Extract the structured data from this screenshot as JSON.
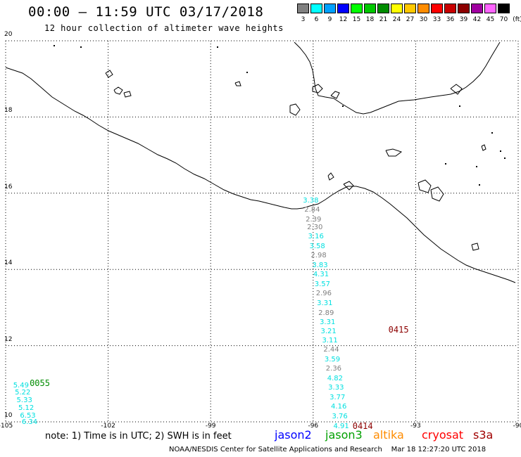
{
  "header": {
    "title": "00:00 – 11:59 UTC 03/17/2018",
    "subtitle": "12 hour collection of altimeter wave heights"
  },
  "legend": {
    "unit_label": "(ft)",
    "bins": [
      {
        "label": "3",
        "color": "#808080"
      },
      {
        "label": "6",
        "color": "#00ffff"
      },
      {
        "label": "9",
        "color": "#00a0ff"
      },
      {
        "label": "12",
        "color": "#0000ff"
      },
      {
        "label": "15",
        "color": "#00ff00"
      },
      {
        "label": "18",
        "color": "#00c800"
      },
      {
        "label": "21",
        "color": "#008c00"
      },
      {
        "label": "24",
        "color": "#ffff00"
      },
      {
        "label": "27",
        "color": "#ffc800"
      },
      {
        "label": "30",
        "color": "#ff8c00"
      },
      {
        "label": "33",
        "color": "#ff0000"
      },
      {
        "label": "36",
        "color": "#c80000"
      },
      {
        "label": "39",
        "color": "#8c0000"
      },
      {
        "label": "42",
        "color": "#a000a0"
      },
      {
        "label": "45",
        "color": "#ff64ff"
      },
      {
        "label": "70",
        "color": "#000000"
      }
    ]
  },
  "axes": {
    "lat_labels": [
      "20",
      "18",
      "16",
      "14",
      "12",
      "10"
    ],
    "lon_labels": [
      "-105",
      "-102",
      "-99",
      "-96",
      "-93",
      "-90"
    ],
    "lat_range": [
      10,
      20
    ],
    "lon_range": [
      -105,
      -90
    ]
  },
  "tracks": [
    {
      "time_label": "0415",
      "time_color": "#8c0000",
      "time_lat": 12.4,
      "time_lon": -93.5,
      "points": [
        {
          "lat": 15.8,
          "lon": -96.07,
          "value": "3.38",
          "color": "#00e0e0"
        },
        {
          "lat": 15.55,
          "lon": -96.03,
          "value": "2.84",
          "color": "#808080"
        },
        {
          "lat": 15.3,
          "lon": -95.99,
          "value": "2.39",
          "color": "#808080"
        },
        {
          "lat": 15.1,
          "lon": -95.95,
          "value": "2.30",
          "color": "#808080"
        },
        {
          "lat": 14.85,
          "lon": -95.92,
          "value": "3.16",
          "color": "#00e0e0"
        },
        {
          "lat": 14.6,
          "lon": -95.88,
          "value": "3.58",
          "color": "#00e0e0"
        },
        {
          "lat": 14.35,
          "lon": -95.84,
          "value": "2.98",
          "color": "#808080"
        },
        {
          "lat": 14.1,
          "lon": -95.8,
          "value": "3.83",
          "color": "#00e0e0"
        },
        {
          "lat": 13.85,
          "lon": -95.77,
          "value": "4.31",
          "color": "#00e0e0"
        },
        {
          "lat": 13.6,
          "lon": -95.73,
          "value": "3.57",
          "color": "#00e0e0"
        },
        {
          "lat": 13.35,
          "lon": -95.69,
          "value": "2.96",
          "color": "#808080"
        },
        {
          "lat": 13.1,
          "lon": -95.66,
          "value": "3.31",
          "color": "#00e0e0"
        },
        {
          "lat": 12.85,
          "lon": -95.62,
          "value": "2.89",
          "color": "#808080"
        },
        {
          "lat": 12.6,
          "lon": -95.58,
          "value": "3.31",
          "color": "#00e0e0"
        },
        {
          "lat": 12.37,
          "lon": -95.55,
          "value": "3.21",
          "color": "#00e0e0"
        },
        {
          "lat": 12.12,
          "lon": -95.51,
          "value": "3.11",
          "color": "#00e0e0"
        },
        {
          "lat": 11.88,
          "lon": -95.47,
          "value": "2.44",
          "color": "#808080"
        },
        {
          "lat": 11.63,
          "lon": -95.44,
          "value": "3.59",
          "color": "#00e0e0"
        },
        {
          "lat": 11.38,
          "lon": -95.4,
          "value": "2.36",
          "color": "#808080"
        },
        {
          "lat": 11.13,
          "lon": -95.36,
          "value": "4.82",
          "color": "#00e0e0"
        },
        {
          "lat": 10.88,
          "lon": -95.33,
          "value": "3.33",
          "color": "#00e0e0"
        },
        {
          "lat": 10.63,
          "lon": -95.29,
          "value": "3.77",
          "color": "#00e0e0"
        },
        {
          "lat": 10.38,
          "lon": -95.25,
          "value": "4.16",
          "color": "#00e0e0"
        },
        {
          "lat": 10.13,
          "lon": -95.22,
          "value": "3.76",
          "color": "#00e0e0"
        },
        {
          "lat": 9.88,
          "lon": -95.18,
          "value": "4.91",
          "color": "#00e0e0"
        }
      ]
    },
    {
      "time_label": "0414",
      "time_color": "#8c0000",
      "time_lat": 9.88,
      "time_lon": -94.55,
      "points": []
    },
    {
      "time_label": "0055",
      "time_color": "#008c00",
      "time_lat": 11.0,
      "time_lon": -104.0,
      "points": [
        {
          "lat": 10.95,
          "lon": -104.55,
          "value": "5.49",
          "color": "#00e0e0"
        },
        {
          "lat": 10.75,
          "lon": -104.5,
          "value": "5.22",
          "color": "#00e0e0"
        },
        {
          "lat": 10.55,
          "lon": -104.45,
          "value": "5.33",
          "color": "#00e0e0"
        },
        {
          "lat": 10.35,
          "lon": -104.4,
          "value": "5.12",
          "color": "#00e0e0"
        },
        {
          "lat": 10.15,
          "lon": -104.35,
          "value": "6.53",
          "color": "#00e0e0"
        },
        {
          "lat": 9.98,
          "lon": -104.3,
          "value": "6.34",
          "color": "#00e0e0"
        }
      ]
    }
  ],
  "footer": {
    "note": "note:  1) Time is in UTC;  2) SWH is in feet",
    "satellites": [
      {
        "name": "jason2",
        "color": "#0000ff"
      },
      {
        "name": "jason3",
        "color": "#00a000"
      },
      {
        "name": "altika",
        "color": "#ff8c00"
      },
      {
        "name": "cryosat",
        "color": "#ff0000"
      },
      {
        "name": "s3a",
        "color": "#a00000"
      }
    ],
    "credit": "NOAA/NESDIS Center for Satellite Applications and Research    Mar 18 12:27:20 UTC 2018"
  }
}
